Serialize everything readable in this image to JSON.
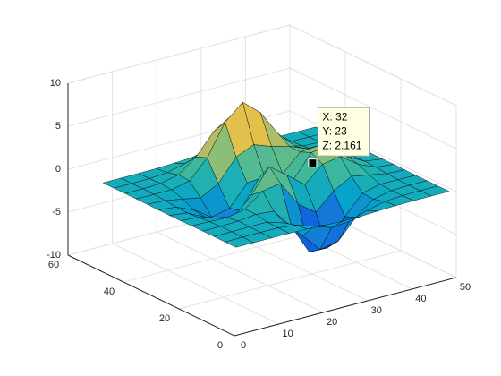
{
  "chart_data": {
    "type": "surface",
    "x": [
      1,
      5,
      9,
      13,
      17,
      21,
      25,
      29,
      33,
      37,
      41,
      45,
      49
    ],
    "y": [
      1,
      5,
      9,
      13,
      17,
      21,
      25,
      29,
      33,
      37,
      41,
      45,
      49
    ],
    "z": [
      [
        0,
        0,
        0,
        0,
        -0.03,
        -0.14,
        -0.24,
        -0.22,
        -0.11,
        -0.03,
        0,
        0,
        0
      ],
      [
        0,
        0,
        0.02,
        0,
        -0.23,
        -0.91,
        -1.57,
        -1.41,
        -0.69,
        -0.18,
        -0.03,
        0,
        0
      ],
      [
        0,
        0.01,
        0.05,
        0.05,
        -0.59,
        -2.63,
        -4.75,
        -4.34,
        -2.1,
        -0.53,
        -0.06,
        0,
        0
      ],
      [
        0,
        0.01,
        0.08,
        0.33,
        0.15,
        -2.19,
        -5.68,
        -5.76,
        -2.64,
        -0.44,
        0.04,
        0.03,
        0
      ],
      [
        -0.01,
        -0.06,
        -0.13,
        0.3,
        1.86,
        2.22,
        -0.72,
        -2.22,
        -0.27,
        0.88,
        0.5,
        0.11,
        0.01
      ],
      [
        -0.03,
        -0.2,
        -0.8,
        -1.21,
        0.8,
        3.55,
        2,
        0.39,
        2.2,
        2.56,
        1.12,
        0.24,
        0.03
      ],
      [
        -0.04,
        -0.3,
        -1.33,
        -2.77,
        -1.65,
        1.48,
        0.98,
        0.38,
        2.94,
        3.27,
        1.41,
        0.3,
        0.03
      ],
      [
        -0.03,
        -0.25,
        -1.12,
        -2.49,
        -2,
        0.39,
        0.46,
        0.37,
        2.38,
        2.56,
        1.09,
        0.23,
        0.03
      ],
      [
        -0.01,
        -0.11,
        -0.48,
        -0.86,
        0.23,
        2.79,
        3.69,
        2.94,
        2.43,
        1.58,
        0.58,
        0.11,
        0.01
      ],
      [
        0,
        -0.02,
        -0.01,
        0.48,
        2.61,
        6.2,
        8,
        6.25,
        3.25,
        1.19,
        0.29,
        0.05,
        0
      ],
      [
        0,
        0.01,
        0.08,
        0.55,
        2.1,
        4.55,
        5.85,
        4.56,
        2.21,
        0.68,
        0.13,
        0.02,
        0
      ],
      [
        0,
        0,
        0.03,
        0.19,
        0.69,
        1.47,
        1.89,
        1.47,
        0.7,
        0.2,
        0.04,
        0,
        0
      ],
      [
        0,
        0,
        0.01,
        0.03,
        0.11,
        0.23,
        0.3,
        0.23,
        0.11,
        0.03,
        0.01,
        0,
        0
      ]
    ],
    "xlim": [
      0,
      50
    ],
    "ylim": [
      0,
      60
    ],
    "zlim": [
      -10,
      10
    ],
    "xticks": [
      0,
      10,
      20,
      30,
      40,
      50
    ],
    "yticks": [
      0,
      20,
      40,
      60
    ],
    "zticks": [
      -10,
      -5,
      0,
      5,
      10
    ],
    "grid": true,
    "colormap": [
      "#352a87",
      "#0f5cdd",
      "#1481d6",
      "#06a4ca",
      "#2eb7a4",
      "#87bf77",
      "#d1bb59",
      "#fec832",
      "#f9fb0e"
    ],
    "edge_color": "#000000",
    "datatip": {
      "x": 32,
      "y": 23,
      "z": 2.161,
      "labels": [
        "X: 32",
        "Y: 23",
        "Z: 2.161"
      ]
    }
  }
}
